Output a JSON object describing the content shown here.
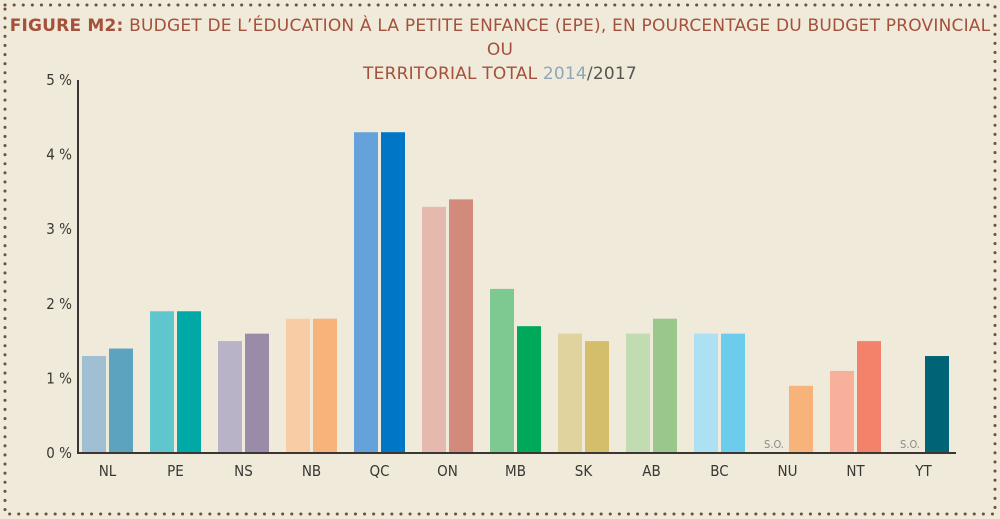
{
  "title": {
    "label": "FIGURE M2:",
    "line1": "BUDGET DE L’ÉDUCATION À LA PETITE ENFANCE (EPE), EN POURCENTAGE DU BUDGET PROVINCIAL OU",
    "line2_prefix": "TERRITORIAL TOTAL ",
    "year1": "2014",
    "sep": "/",
    "year2": "2017"
  },
  "colors": {
    "background": "#f0eadb",
    "title": "#a4503a",
    "axis": "#3a3632",
    "dots": "#6e5238"
  },
  "chart_data": {
    "type": "bar",
    "title": "FIGURE M2: BUDGET DE L’ÉDUCATION À LA PETITE ENFANCE (EPE), EN POURCENTAGE DU BUDGET PROVINCIAL OU TERRITORIAL TOTAL 2014/2017",
    "xlabel": "",
    "ylabel": "",
    "ylim": [
      0,
      5
    ],
    "yticks": [
      0,
      1,
      2,
      3,
      4,
      5
    ],
    "ytick_labels": [
      "0 %",
      "1 %",
      "2 %",
      "3 %",
      "4 %",
      "5 %"
    ],
    "categories": [
      "NL",
      "PE",
      "NS",
      "NB",
      "QC",
      "ON",
      "MB",
      "SK",
      "AB",
      "BC",
      "NU",
      "NT",
      "YT"
    ],
    "series": [
      {
        "name": "2014",
        "values": [
          1.3,
          1.9,
          1.5,
          1.8,
          4.3,
          3.3,
          2.2,
          1.6,
          1.6,
          1.6,
          null,
          1.1,
          null
        ],
        "colors": [
          "#a0bfd2",
          "#5ec6cc",
          "#b9b3c7",
          "#f8cca4",
          "#65a2dc",
          "#e5b9ae",
          "#7ec892",
          "#e0d39d",
          "#c2dcb2",
          "#aee0f4",
          "#f8cca4",
          "#f9b09a",
          "#00697a"
        ]
      },
      {
        "name": "2017",
        "values": [
          1.4,
          1.9,
          1.6,
          1.8,
          4.3,
          3.4,
          1.7,
          1.5,
          1.8,
          1.6,
          0.9,
          1.5,
          1.3
        ],
        "colors": [
          "#5ca3bf",
          "#00a9a6",
          "#9a8ba8",
          "#f8b37a",
          "#0077c6",
          "#d28a7c",
          "#00a85a",
          "#d5be6b",
          "#9ac88a",
          "#6cccec",
          "#f8b37a",
          "#f3826a",
          "#006476"
        ]
      }
    ],
    "missing_label": "S.O.",
    "missing_label_series": "2014",
    "missing_categories": [
      "NU",
      "YT"
    ]
  }
}
